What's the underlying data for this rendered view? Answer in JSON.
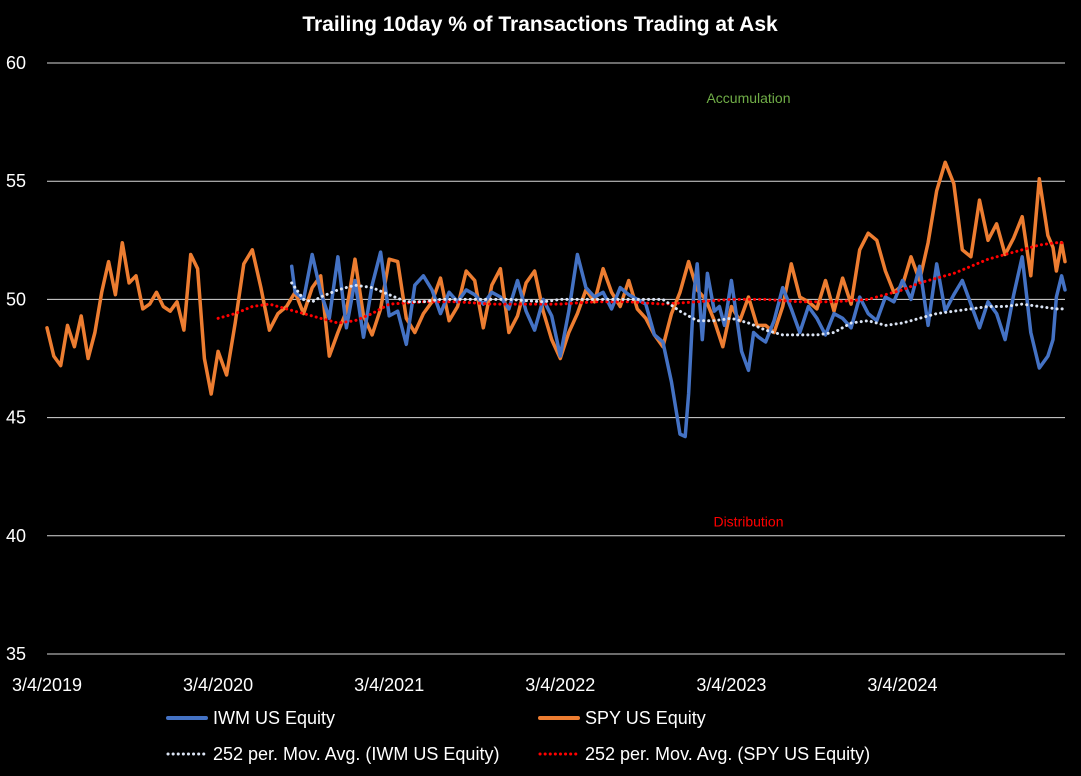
{
  "chart_data": {
    "type": "line",
    "title": "Trailing 10day  % of Transactions Trading at Ask",
    "xlabel": "",
    "ylabel": "",
    "ylim": [
      35,
      60
    ],
    "yticks": [
      "35",
      "40",
      "45",
      "50",
      "55",
      "60"
    ],
    "x_tick_labels": [
      "3/4/2019",
      "3/4/2020",
      "3/4/2021",
      "3/4/2022",
      "3/4/2023",
      "3/4/2024"
    ],
    "x_tick_positions": [
      2019.0,
      2020.0,
      2021.0,
      2022.0,
      2023.0,
      2024.0
    ],
    "xlim": [
      2019.0,
      2024.95
    ],
    "grid": true,
    "legend_position": "bottom",
    "annotations": [
      {
        "text": "Accumulation",
        "x": 2023.1,
        "y": 58.3,
        "color": "#70ad47"
      },
      {
        "text": "Distribution",
        "x": 2023.1,
        "y": 40.4,
        "color": "#ff0000"
      }
    ],
    "series": [
      {
        "name": "IWM US Equity",
        "style": "solid",
        "color": "#4472c4",
        "x": [
          2020.43,
          2020.45,
          2020.5,
          2020.55,
          2020.6,
          2020.65,
          2020.7,
          2020.75,
          2020.8,
          2020.85,
          2020.9,
          2020.95,
          2021.0,
          2021.05,
          2021.1,
          2021.15,
          2021.2,
          2021.25,
          2021.3,
          2021.35,
          2021.4,
          2021.45,
          2021.5,
          2021.55,
          2021.6,
          2021.65,
          2021.7,
          2021.75,
          2021.8,
          2021.85,
          2021.9,
          2021.95,
          2022.0,
          2022.05,
          2022.1,
          2022.15,
          2022.2,
          2022.25,
          2022.3,
          2022.35,
          2022.4,
          2022.45,
          2022.5,
          2022.55,
          2022.6,
          2022.65,
          2022.7,
          2022.73,
          2022.75,
          2022.78,
          2022.8,
          2022.83,
          2022.86,
          2022.9,
          2022.93,
          2022.96,
          2023.0,
          2023.03,
          2023.06,
          2023.1,
          2023.13,
          2023.16,
          2023.2,
          2023.25,
          2023.3,
          2023.35,
          2023.4,
          2023.45,
          2023.5,
          2023.55,
          2023.6,
          2023.65,
          2023.7,
          2023.75,
          2023.8,
          2023.85,
          2023.9,
          2023.95,
          2024.0,
          2024.05,
          2024.1,
          2024.15,
          2024.2,
          2024.25,
          2024.3,
          2024.35,
          2024.4,
          2024.45,
          2024.5,
          2024.55,
          2024.6,
          2024.65,
          2024.7,
          2024.75,
          2024.8,
          2024.85,
          2024.88,
          2024.9,
          2024.93,
          2024.95
        ],
        "values": [
          51.4,
          50.3,
          50.0,
          51.9,
          50.3,
          49.2,
          51.8,
          48.8,
          50.8,
          48.4,
          50.6,
          52.0,
          49.3,
          49.5,
          48.1,
          50.6,
          51.0,
          50.4,
          49.4,
          50.3,
          49.9,
          50.4,
          50.2,
          49.8,
          50.3,
          50.1,
          49.6,
          50.8,
          49.5,
          48.7,
          50.0,
          49.3,
          47.6,
          49.5,
          51.9,
          50.5,
          50.1,
          50.3,
          49.6,
          50.5,
          50.2,
          50.0,
          49.8,
          48.5,
          48.2,
          46.5,
          44.3,
          44.2,
          46.0,
          50.2,
          51.5,
          48.3,
          51.1,
          49.5,
          49.7,
          48.9,
          50.8,
          49.3,
          47.8,
          47.0,
          48.6,
          48.4,
          48.2,
          49.1,
          50.5,
          49.6,
          48.6,
          49.7,
          49.2,
          48.5,
          49.4,
          49.2,
          48.8,
          50.1,
          49.4,
          49.1,
          50.1,
          49.9,
          50.8,
          50.0,
          51.4,
          48.9,
          51.5,
          49.5,
          50.2,
          50.8,
          49.8,
          48.8,
          49.9,
          49.4,
          48.3,
          50.2,
          51.8,
          48.6,
          47.1,
          47.6,
          48.3,
          50.1,
          51.0,
          50.4
        ]
      },
      {
        "name": "SPY US Equity",
        "style": "solid",
        "color": "#ed7d31",
        "x": [
          2019.0,
          2019.04,
          2019.08,
          2019.12,
          2019.16,
          2019.2,
          2019.24,
          2019.28,
          2019.32,
          2019.36,
          2019.4,
          2019.44,
          2019.48,
          2019.52,
          2019.56,
          2019.6,
          2019.64,
          2019.68,
          2019.72,
          2019.76,
          2019.8,
          2019.84,
          2019.88,
          2019.92,
          2019.96,
          2020.0,
          2020.05,
          2020.1,
          2020.15,
          2020.2,
          2020.25,
          2020.3,
          2020.35,
          2020.4,
          2020.45,
          2020.5,
          2020.55,
          2020.6,
          2020.65,
          2020.7,
          2020.75,
          2020.8,
          2020.85,
          2020.9,
          2020.95,
          2021.0,
          2021.05,
          2021.1,
          2021.15,
          2021.2,
          2021.25,
          2021.3,
          2021.35,
          2021.4,
          2021.45,
          2021.5,
          2021.55,
          2021.6,
          2021.65,
          2021.7,
          2021.75,
          2021.8,
          2021.85,
          2021.9,
          2021.95,
          2022.0,
          2022.05,
          2022.1,
          2022.15,
          2022.2,
          2022.25,
          2022.3,
          2022.35,
          2022.4,
          2022.45,
          2022.5,
          2022.55,
          2022.6,
          2022.65,
          2022.7,
          2022.75,
          2022.8,
          2022.85,
          2022.9,
          2022.95,
          2023.0,
          2023.05,
          2023.1,
          2023.15,
          2023.2,
          2023.25,
          2023.3,
          2023.35,
          2023.4,
          2023.45,
          2023.5,
          2023.55,
          2023.6,
          2023.65,
          2023.7,
          2023.75,
          2023.8,
          2023.85,
          2023.9,
          2023.95,
          2024.0,
          2024.05,
          2024.1,
          2024.15,
          2024.2,
          2024.25,
          2024.3,
          2024.35,
          2024.4,
          2024.45,
          2024.5,
          2024.55,
          2024.6,
          2024.65,
          2024.7,
          2024.75,
          2024.8,
          2024.85,
          2024.88,
          2024.9,
          2024.93,
          2024.95
        ],
        "values": [
          48.8,
          47.6,
          47.2,
          48.9,
          48.0,
          49.3,
          47.5,
          48.6,
          50.3,
          51.6,
          50.2,
          52.4,
          50.7,
          51.0,
          49.6,
          49.8,
          50.3,
          49.7,
          49.5,
          49.9,
          48.7,
          51.9,
          51.3,
          47.5,
          46.0,
          47.8,
          46.8,
          49.0,
          51.5,
          52.1,
          50.5,
          48.7,
          49.4,
          49.7,
          50.3,
          49.4,
          50.5,
          51.0,
          47.6,
          48.6,
          49.5,
          51.7,
          49.3,
          48.5,
          49.6,
          51.7,
          51.6,
          49.2,
          48.6,
          49.4,
          49.9,
          50.9,
          49.1,
          49.7,
          51.2,
          50.8,
          48.8,
          50.6,
          51.3,
          48.6,
          49.3,
          50.7,
          51.2,
          49.5,
          48.3,
          47.5,
          48.6,
          49.4,
          50.4,
          49.9,
          51.3,
          50.3,
          49.7,
          50.8,
          49.6,
          49.2,
          48.5,
          48.0,
          49.4,
          50.3,
          51.6,
          50.4,
          50.0,
          49.1,
          48.0,
          49.7,
          49.1,
          50.1,
          48.9,
          48.9,
          48.6,
          49.7,
          51.5,
          50.1,
          49.9,
          49.6,
          50.8,
          49.5,
          50.9,
          49.8,
          52.1,
          52.8,
          52.5,
          51.2,
          50.3,
          50.6,
          51.8,
          50.8,
          52.4,
          54.6,
          55.8,
          54.9,
          52.1,
          51.8,
          54.2,
          52.5,
          53.2,
          51.9,
          52.6,
          53.5,
          51.0,
          55.1,
          52.7,
          52.2,
          51.2,
          52.4,
          51.6
        ]
      },
      {
        "name": "252 per. Mov. Avg. (IWM US Equity)",
        "style": "dotted",
        "color": "#dae3f3",
        "x": [
          2020.43,
          2020.5,
          2020.55,
          2020.6,
          2020.7,
          2020.8,
          2020.9,
          2021.0,
          2021.1,
          2021.2,
          2021.3,
          2021.5,
          2021.7,
          2021.9,
          2022.0,
          2022.2,
          2022.4,
          2022.6,
          2022.7,
          2022.8,
          2022.9,
          2023.0,
          2023.1,
          2023.2,
          2023.3,
          2023.4,
          2023.5,
          2023.6,
          2023.7,
          2023.8,
          2023.9,
          2024.0,
          2024.1,
          2024.2,
          2024.3,
          2024.4,
          2024.5,
          2024.6,
          2024.7,
          2024.8,
          2024.9,
          2024.95
        ],
        "values": [
          50.7,
          50.0,
          49.9,
          50.1,
          50.4,
          50.6,
          50.5,
          50.2,
          49.9,
          49.9,
          50.0,
          50.0,
          50.0,
          49.9,
          50.0,
          50.0,
          50.0,
          50.0,
          49.5,
          49.1,
          49.1,
          49.2,
          49.0,
          48.7,
          48.5,
          48.5,
          48.5,
          48.6,
          49.0,
          49.1,
          48.9,
          49.0,
          49.2,
          49.4,
          49.5,
          49.6,
          49.7,
          49.7,
          49.8,
          49.7,
          49.6,
          49.6
        ]
      },
      {
        "name": "252 per. Mov. Avg. (SPY US Equity)",
        "style": "dotted",
        "color": "#ff0000",
        "x": [
          2020.0,
          2020.1,
          2020.2,
          2020.3,
          2020.4,
          2020.5,
          2020.6,
          2020.7,
          2020.8,
          2020.9,
          2021.0,
          2021.2,
          2021.4,
          2021.6,
          2021.8,
          2022.0,
          2022.2,
          2022.4,
          2022.6,
          2022.8,
          2023.0,
          2023.2,
          2023.4,
          2023.6,
          2023.8,
          2024.0,
          2024.1,
          2024.2,
          2024.3,
          2024.4,
          2024.5,
          2024.6,
          2024.7,
          2024.8,
          2024.9,
          2024.95
        ],
        "values": [
          49.2,
          49.4,
          49.7,
          49.8,
          49.6,
          49.4,
          49.2,
          49.0,
          49.1,
          49.4,
          49.8,
          49.9,
          49.9,
          49.8,
          49.8,
          49.8,
          49.9,
          49.9,
          49.8,
          49.9,
          50.0,
          50.0,
          49.9,
          49.9,
          50.0,
          50.4,
          50.7,
          50.9,
          51.1,
          51.4,
          51.7,
          51.9,
          52.1,
          52.3,
          52.4,
          52.4
        ]
      }
    ]
  }
}
